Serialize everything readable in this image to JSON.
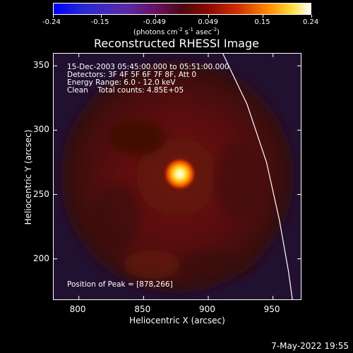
{
  "chart_data": {
    "type": "heatmap",
    "title": "Reconstructed RHESSI Image",
    "xlabel": "Heliocentric X (arcsec)",
    "ylabel": "Heliocentric Y (arcsec)",
    "xlim": [
      780,
      972
    ],
    "ylim": [
      168,
      360
    ],
    "x_ticks": [
      "800",
      "850",
      "900",
      "950"
    ],
    "y_ticks": [
      "200",
      "250",
      "300",
      "350"
    ],
    "colorbar": {
      "ticks": [
        "-0.24",
        "-0.15",
        "-0.049",
        "0.049",
        "0.15",
        "0.24"
      ],
      "range": [
        -0.24,
        0.24
      ],
      "units_text": "(photons cm",
      "units_exp1": "-2",
      "units_mid1": " s",
      "units_exp2": "-1",
      "units_mid2": " asec",
      "units_exp3": "-2",
      "units_close": ")"
    },
    "annotations": {
      "time": "15-Dec-2003 05:45:00.000 to 05:51:00.000",
      "detectors": "Detectors: 3F 4F 5F 6F 7F 8F, Att 0",
      "energy": "Energy Range: 6.0 - 12.0 keV",
      "clean": "Clean    Total counts: 4.85E+05",
      "peak": "Position of Peak = [878,266]"
    },
    "peak": {
      "x": 878,
      "y": 266
    },
    "limb_curve": [
      [
        911,
        360
      ],
      [
        930,
        320
      ],
      [
        945,
        275
      ],
      [
        955,
        230
      ],
      [
        962,
        190
      ],
      [
        965,
        168
      ]
    ],
    "colors": {
      "background": "#000000",
      "text": "#ffffff",
      "limb": "#ffffff"
    }
  },
  "footer": {
    "date": "7-May-2022 19:55"
  }
}
